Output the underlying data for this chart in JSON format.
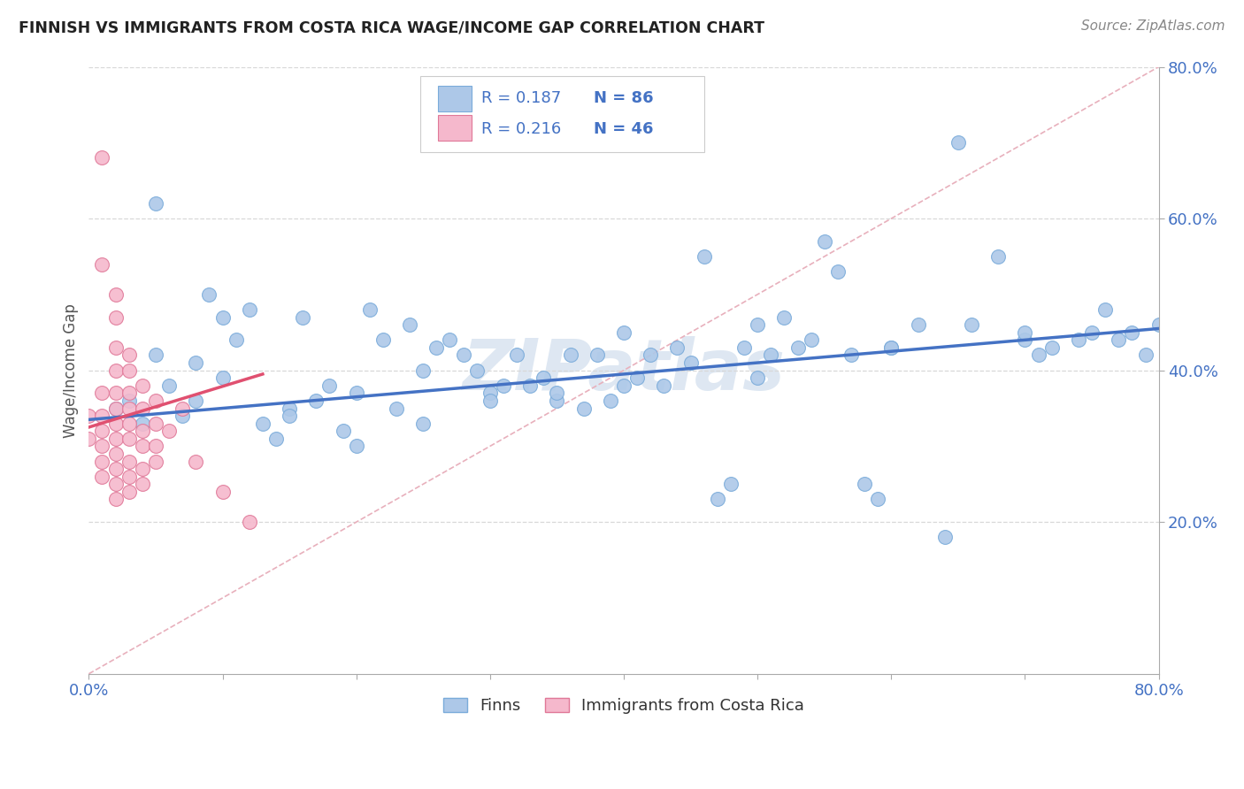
{
  "title": "FINNISH VS IMMIGRANTS FROM COSTA RICA WAGE/INCOME GAP CORRELATION CHART",
  "source": "Source: ZipAtlas.com",
  "ylabel": "Wage/Income Gap",
  "xlim": [
    0.0,
    0.8
  ],
  "ylim": [
    0.0,
    0.8
  ],
  "group1_color": "#adc8e8",
  "group1_edge_color": "#7aabda",
  "group2_color": "#f5b8cc",
  "group2_edge_color": "#e07898",
  "line1_color": "#4472c4",
  "line2_color": "#e05070",
  "diag_color": "#e8b0bc",
  "legend_text_color": "#4472c4",
  "watermark": "ZIPatlas",
  "watermark_color": "#c8d8ea",
  "finns_label": "Finns",
  "immigrants_label": "Immigrants from Costa Rica",
  "background_color": "#ffffff",
  "grid_color": "#d8d8d8",
  "finns_x": [
    0.02,
    0.03,
    0.04,
    0.05,
    0.05,
    0.06,
    0.07,
    0.08,
    0.08,
    0.09,
    0.1,
    0.11,
    0.12,
    0.13,
    0.14,
    0.15,
    0.16,
    0.17,
    0.18,
    0.19,
    0.2,
    0.21,
    0.22,
    0.23,
    0.24,
    0.25,
    0.26,
    0.27,
    0.28,
    0.29,
    0.3,
    0.31,
    0.32,
    0.33,
    0.34,
    0.35,
    0.36,
    0.37,
    0.38,
    0.39,
    0.4,
    0.41,
    0.42,
    0.43,
    0.44,
    0.45,
    0.46,
    0.47,
    0.48,
    0.49,
    0.5,
    0.51,
    0.52,
    0.53,
    0.54,
    0.55,
    0.56,
    0.57,
    0.58,
    0.59,
    0.6,
    0.62,
    0.64,
    0.65,
    0.66,
    0.68,
    0.7,
    0.71,
    0.72,
    0.74,
    0.75,
    0.76,
    0.77,
    0.78,
    0.79,
    0.8,
    0.1,
    0.15,
    0.2,
    0.25,
    0.3,
    0.35,
    0.4,
    0.5,
    0.6,
    0.7
  ],
  "finns_y": [
    0.35,
    0.36,
    0.33,
    0.62,
    0.42,
    0.38,
    0.34,
    0.36,
    0.41,
    0.5,
    0.47,
    0.44,
    0.48,
    0.33,
    0.31,
    0.35,
    0.47,
    0.36,
    0.38,
    0.32,
    0.37,
    0.48,
    0.44,
    0.35,
    0.46,
    0.4,
    0.43,
    0.44,
    0.42,
    0.4,
    0.37,
    0.38,
    0.42,
    0.38,
    0.39,
    0.36,
    0.42,
    0.35,
    0.42,
    0.36,
    0.45,
    0.39,
    0.42,
    0.38,
    0.43,
    0.41,
    0.55,
    0.23,
    0.25,
    0.43,
    0.46,
    0.42,
    0.47,
    0.43,
    0.44,
    0.57,
    0.53,
    0.42,
    0.25,
    0.23,
    0.43,
    0.46,
    0.18,
    0.7,
    0.46,
    0.55,
    0.44,
    0.42,
    0.43,
    0.44,
    0.45,
    0.48,
    0.44,
    0.45,
    0.42,
    0.46,
    0.39,
    0.34,
    0.3,
    0.33,
    0.36,
    0.37,
    0.38,
    0.39,
    0.43,
    0.45
  ],
  "immigrants_x": [
    0.0,
    0.0,
    0.01,
    0.01,
    0.01,
    0.01,
    0.01,
    0.01,
    0.01,
    0.01,
    0.02,
    0.02,
    0.02,
    0.02,
    0.02,
    0.02,
    0.02,
    0.02,
    0.02,
    0.02,
    0.02,
    0.02,
    0.03,
    0.03,
    0.03,
    0.03,
    0.03,
    0.03,
    0.03,
    0.03,
    0.03,
    0.04,
    0.04,
    0.04,
    0.04,
    0.04,
    0.04,
    0.05,
    0.05,
    0.05,
    0.05,
    0.06,
    0.07,
    0.08,
    0.1,
    0.12
  ],
  "immigrants_y": [
    0.34,
    0.31,
    0.68,
    0.54,
    0.37,
    0.34,
    0.32,
    0.3,
    0.28,
    0.26,
    0.5,
    0.47,
    0.43,
    0.4,
    0.37,
    0.35,
    0.33,
    0.31,
    0.29,
    0.27,
    0.25,
    0.23,
    0.42,
    0.4,
    0.37,
    0.35,
    0.33,
    0.31,
    0.28,
    0.26,
    0.24,
    0.38,
    0.35,
    0.32,
    0.3,
    0.27,
    0.25,
    0.36,
    0.33,
    0.3,
    0.28,
    0.32,
    0.35,
    0.28,
    0.24,
    0.2
  ],
  "line1_x": [
    0.0,
    0.8
  ],
  "line1_y": [
    0.335,
    0.455
  ],
  "line2_x": [
    0.0,
    0.13
  ],
  "line2_y": [
    0.325,
    0.395
  ]
}
